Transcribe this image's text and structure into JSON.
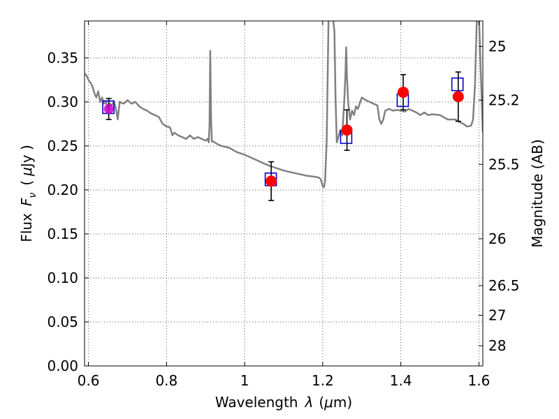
{
  "chart_data": {
    "type": "scatter",
    "xlabel_text": "Wavelength",
    "xlabel_symbol": "λ",
    "xlabel_unit_open": "(",
    "xlabel_unit_mu": "μ",
    "xlabel_unit_rest": "m)",
    "ylabel_text": "Flux",
    "ylabel_symbol": "F",
    "ylabel_subscript": "ν",
    "ylabel_unit_open": "(",
    "ylabel_unit_mu": "μ",
    "ylabel_unit_rest": "Jy )",
    "y2label": "Magnitude (AB)",
    "xlim": [
      0.59,
      1.61
    ],
    "ylim": [
      0.0,
      0.392
    ],
    "grid": true,
    "x_ticks": [
      0.6,
      0.8,
      1.0,
      1.2,
      1.4,
      1.6
    ],
    "x_tick_labels": [
      "0.6",
      "0.8",
      "1",
      "1.2",
      "1.4",
      "1.6"
    ],
    "y_ticks": [
      0.0,
      0.05,
      0.1,
      0.15,
      0.2,
      0.25,
      0.3,
      0.35
    ],
    "y_tick_labels": [
      "0.00",
      "0.05",
      "0.10",
      "0.15",
      "0.20",
      "0.25",
      "0.30",
      "0.35"
    ],
    "y2_ticks": [
      25,
      25.2,
      25.5,
      26,
      26.5,
      27,
      28
    ],
    "y2_tick_labels": [
      "25",
      "25.2",
      "25.5",
      "26",
      "26.5",
      "27",
      "28"
    ],
    "colors": {
      "template": "#808080",
      "model": "#0000cc",
      "observed": "#ff0000",
      "errorbar": "#000000",
      "grid": "#555555"
    },
    "template_spectrum": {
      "x": [
        0.59,
        0.595,
        0.6,
        0.605,
        0.61,
        0.615,
        0.62,
        0.625,
        0.63,
        0.635,
        0.64,
        0.645,
        0.65,
        0.655,
        0.66,
        0.665,
        0.67,
        0.675,
        0.68,
        0.69,
        0.7,
        0.71,
        0.72,
        0.73,
        0.74,
        0.75,
        0.76,
        0.77,
        0.78,
        0.79,
        0.8,
        0.805,
        0.81,
        0.815,
        0.82,
        0.83,
        0.84,
        0.85,
        0.86,
        0.87,
        0.88,
        0.89,
        0.9,
        0.905,
        0.908,
        0.91,
        0.912,
        0.914,
        0.916,
        0.92,
        0.93,
        0.94,
        0.96,
        0.98,
        1.0,
        1.02,
        1.04,
        1.06,
        1.08,
        1.1,
        1.12,
        1.14,
        1.16,
        1.18,
        1.19,
        1.195,
        1.2,
        1.203,
        1.206,
        1.21,
        1.215,
        1.22,
        1.225,
        1.23,
        1.233,
        1.236,
        1.24,
        1.245,
        1.25,
        1.255,
        1.258,
        1.26,
        1.262,
        1.265,
        1.27,
        1.275,
        1.28,
        1.285,
        1.29,
        1.3,
        1.31,
        1.32,
        1.33,
        1.34,
        1.345,
        1.35,
        1.355,
        1.36,
        1.37,
        1.38,
        1.39,
        1.4,
        1.41,
        1.42,
        1.43,
        1.44,
        1.45,
        1.46,
        1.47,
        1.48,
        1.5,
        1.52,
        1.54,
        1.55,
        1.56,
        1.57,
        1.58,
        1.585,
        1.59,
        1.595,
        1.6,
        1.605,
        1.61
      ],
      "y": [
        0.332,
        0.33,
        0.325,
        0.322,
        0.318,
        0.31,
        0.305,
        0.312,
        0.3,
        0.305,
        0.298,
        0.3,
        0.292,
        0.298,
        0.296,
        0.3,
        0.293,
        0.28,
        0.3,
        0.298,
        0.302,
        0.298,
        0.3,
        0.295,
        0.292,
        0.29,
        0.287,
        0.285,
        0.283,
        0.275,
        0.272,
        0.272,
        0.27,
        0.262,
        0.265,
        0.262,
        0.26,
        0.258,
        0.262,
        0.258,
        0.26,
        0.258,
        0.256,
        0.258,
        0.254,
        0.272,
        0.358,
        0.28,
        0.255,
        0.255,
        0.252,
        0.25,
        0.248,
        0.243,
        0.24,
        0.236,
        0.232,
        0.228,
        0.225,
        0.222,
        0.22,
        0.218,
        0.216,
        0.215,
        0.214,
        0.212,
        0.204,
        0.203,
        0.21,
        0.255,
        0.4,
        0.4,
        0.4,
        0.38,
        0.3,
        0.254,
        0.26,
        0.268,
        0.262,
        0.3,
        0.33,
        0.362,
        0.33,
        0.3,
        0.28,
        0.29,
        0.285,
        0.295,
        0.292,
        0.305,
        0.302,
        0.3,
        0.298,
        0.296,
        0.28,
        0.275,
        0.28,
        0.29,
        0.292,
        0.29,
        0.291,
        0.29,
        0.289,
        0.292,
        0.29,
        0.288,
        0.285,
        0.288,
        0.285,
        0.286,
        0.285,
        0.28,
        0.28,
        0.277,
        0.275,
        0.272,
        0.273,
        0.28,
        0.32,
        0.4,
        0.4,
        0.33,
        0.265
      ]
    },
    "model_fluxes": {
      "x": [
        0.651,
        1.067,
        1.26,
        1.405,
        1.545
      ],
      "y": [
        0.294,
        0.212,
        0.26,
        0.302,
        0.32
      ]
    },
    "observed_fluxes": {
      "x": [
        0.652,
        1.068,
        1.262,
        1.406,
        1.547
      ],
      "y": [
        0.292,
        0.21,
        0.268,
        0.311,
        0.306
      ],
      "err": [
        0.012,
        0.022,
        0.023,
        0.02,
        0.028
      ]
    }
  }
}
